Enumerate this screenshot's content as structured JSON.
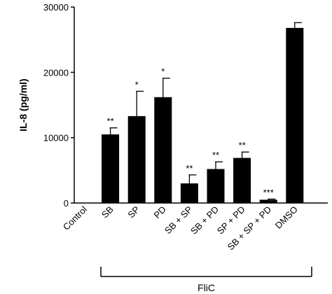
{
  "chart_data": {
    "type": "bar",
    "title": "",
    "xlabel": "",
    "ylabel": "IL-8 (pg/ml)",
    "ylim": [
      0,
      30000
    ],
    "yticks": [
      0,
      10000,
      20000,
      30000
    ],
    "ytick_labels": [
      "0",
      "10000",
      "20000",
      "30000"
    ],
    "categories": [
      "Control",
      "SB",
      "SP",
      "PD",
      "SB + SP",
      "SB + PD",
      "SP + PD",
      "SB + SP + PD",
      "DMSO"
    ],
    "values": [
      0,
      10500,
      13300,
      16200,
      3000,
      5200,
      6900,
      500,
      26800
    ],
    "errors": [
      0,
      1000,
      3800,
      2900,
      1300,
      1100,
      900,
      100,
      800
    ],
    "significance": [
      "",
      "**",
      "*",
      "*",
      "**",
      "**",
      "**",
      "***",
      ""
    ],
    "group_label": "FliC",
    "grid": false,
    "bar_color": "#000000"
  }
}
